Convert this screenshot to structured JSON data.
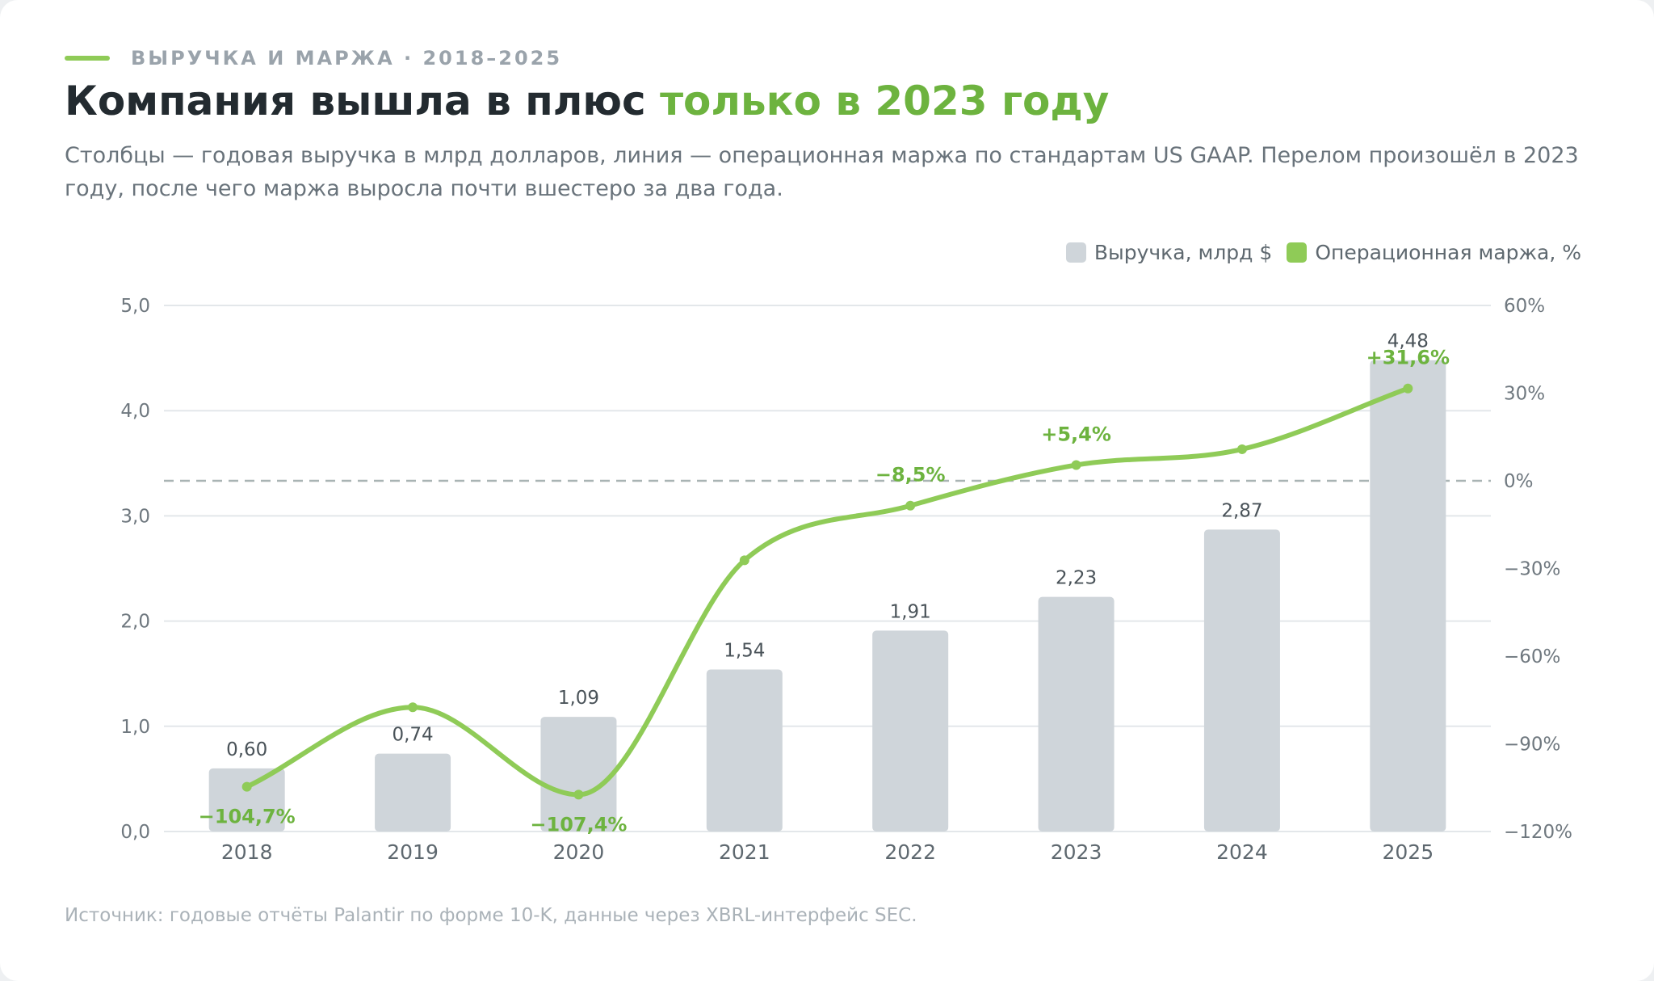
{
  "header": {
    "eyebrow": "ВЫРУЧКА И МАРЖА · 2018–2025",
    "title_main": "Компания вышла в плюс ",
    "title_accent": "только в 2023 году",
    "subtitle": "Столбцы — годовая выручка в млрд долларов, линия — операционная маржа по стандартам US GAAP. Перелом произошёл в 2023 году, после чего маржа выросла почти вшестеро за два года."
  },
  "legend": {
    "revenue": "Выручка, млрд $",
    "margin": "Операционная маржа, %"
  },
  "footer": {
    "source": "Источник: годовые отчёты Palantir по форме 10-K, данные через XBRL-интерфейс SEC."
  },
  "colors": {
    "bar": "#cfd5da",
    "line": "#8fcb57",
    "accent_text": "#6db33f",
    "grid": "#e3e7ea",
    "zero_line": "#a9b4b4"
  },
  "chart_data": {
    "type": "bar",
    "categories": [
      "2018",
      "2019",
      "2020",
      "2021",
      "2022",
      "2023",
      "2024",
      "2025"
    ],
    "series": [
      {
        "name": "Выручка, млрд $",
        "type": "bar",
        "axis": "left",
        "values": [
          0.6,
          0.74,
          1.09,
          1.54,
          1.91,
          2.23,
          2.87,
          4.48
        ],
        "labels": [
          "0,60",
          "0,74",
          "1,09",
          "1,54",
          "1,91",
          "2,23",
          "2,87",
          "4,48"
        ]
      },
      {
        "name": "Операционная маржа, %",
        "type": "line",
        "axis": "right",
        "values": [
          -104.7,
          -77.5,
          -107.4,
          -27.2,
          -8.5,
          5.4,
          10.8,
          31.6
        ],
        "labels": [
          "−104,7%",
          "",
          "−107,4%",
          "",
          "−8,5%",
          "+5,4%",
          "",
          "+31,6%"
        ]
      }
    ],
    "y_left": {
      "range": [
        0,
        5
      ],
      "ticks": [
        0,
        1,
        2,
        3,
        4,
        5
      ],
      "tick_labels": [
        "0,0",
        "1,0",
        "2,0",
        "3,0",
        "4,0",
        "5,0"
      ]
    },
    "y_right": {
      "range": [
        -120,
        60
      ],
      "ticks": [
        -120,
        -90,
        -60,
        -30,
        0,
        30,
        60
      ],
      "tick_labels": [
        "−120%",
        "−90%",
        "−60%",
        "−30%",
        "0%",
        "30%",
        "60%"
      ]
    },
    "zero_reference_line": true,
    "grid": true,
    "legend_position": "top-right",
    "xlabel": "",
    "ylabel": ""
  }
}
